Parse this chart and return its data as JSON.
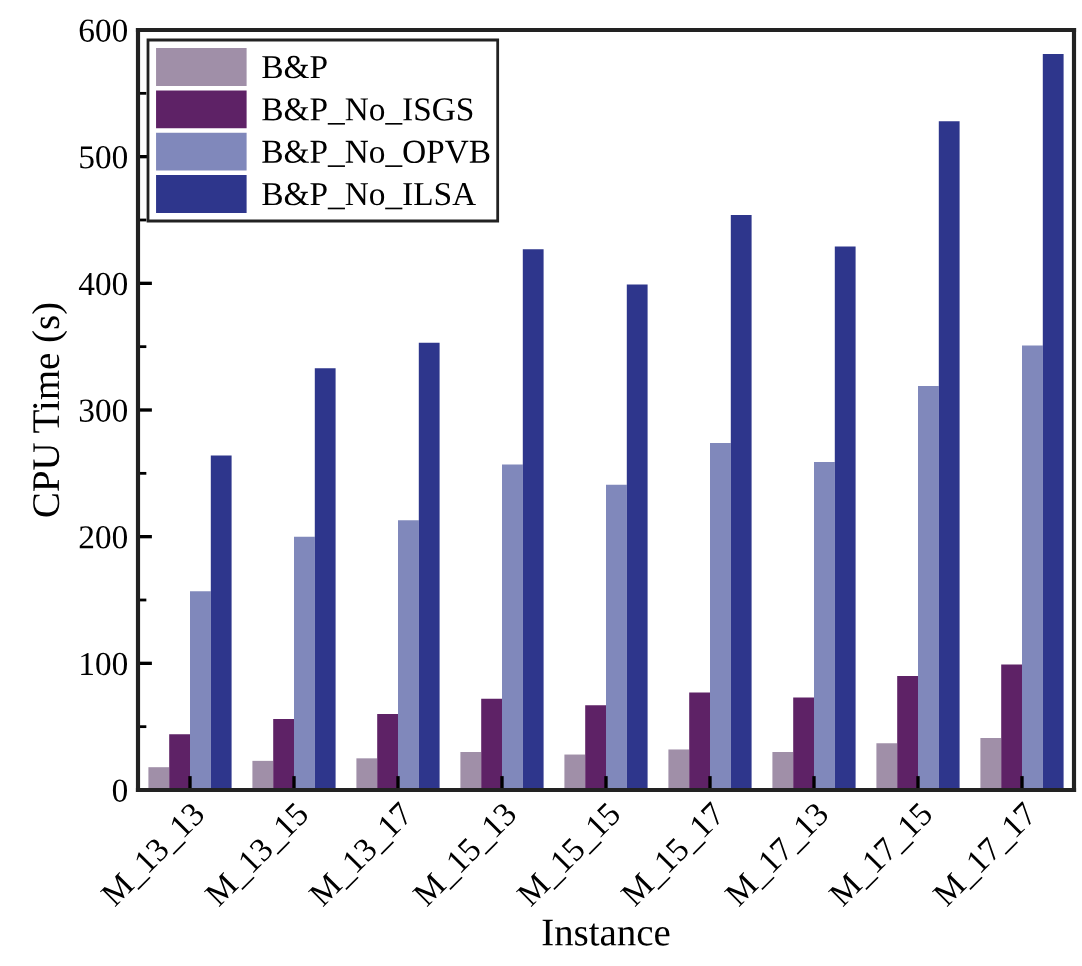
{
  "chart_data": {
    "type": "bar",
    "xlabel": "Instance",
    "ylabel": "CPU Time (s)",
    "categories": [
      "M_13_13",
      "M_13_15",
      "M_13_17",
      "M_15_13",
      "M_15_15",
      "M_15_17",
      "M_17_13",
      "M_17_15",
      "M_17_17"
    ],
    "series": [
      {
        "name": "B&P",
        "color": "#a08fa8",
        "values": [
          18,
          23,
          25,
          30,
          28,
          32,
          30,
          37,
          41
        ]
      },
      {
        "name": "B&P_No_ISGS",
        "color": "#5e2266",
        "values": [
          44,
          56,
          60,
          72,
          67,
          77,
          73,
          90,
          99
        ]
      },
      {
        "name": "B&P_No_OPVB",
        "color": "#8088bb",
        "values": [
          157,
          200,
          213,
          257,
          241,
          274,
          259,
          319,
          351
        ]
      },
      {
        "name": "B&P_No_ILSA",
        "color": "#2e368c",
        "values": [
          264,
          333,
          353,
          427,
          399,
          454,
          429,
          528,
          581
        ]
      }
    ],
    "ylim": [
      0,
      600
    ],
    "yticks": [
      0,
      {
        "value": 50,
        "label": null
      },
      100,
      {
        "value": 150,
        "label": null
      },
      200,
      {
        "value": 250,
        "label": null
      },
      300,
      {
        "value": 350,
        "label": null
      },
      400,
      {
        "value": 450,
        "label": null
      },
      500,
      {
        "value": 550,
        "label": null
      },
      600
    ],
    "grid": false,
    "legend": "top left"
  }
}
